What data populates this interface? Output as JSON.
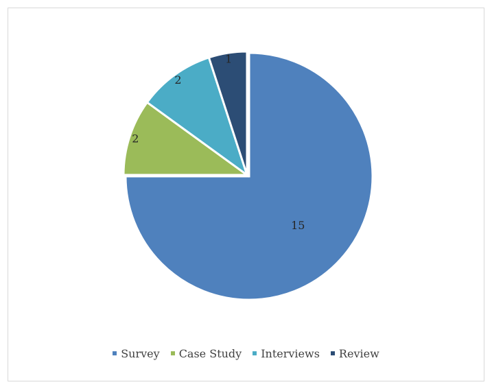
{
  "chart_data": {
    "type": "pie",
    "title": "",
    "slices": [
      {
        "label": "Survey",
        "value": 15,
        "color": "#4f81bd"
      },
      {
        "label": "Case Study",
        "value": 2,
        "color": "#9bbb59"
      },
      {
        "label": "Interviews",
        "value": 2,
        "color": "#4bacc6"
      },
      {
        "label": "Review",
        "value": 1,
        "color": "#2c4d75"
      }
    ],
    "start": "12 o'clock",
    "direction": "clockwise",
    "exploded_slice": "Survey",
    "data_labels": "values",
    "legend_position": "bottom"
  }
}
